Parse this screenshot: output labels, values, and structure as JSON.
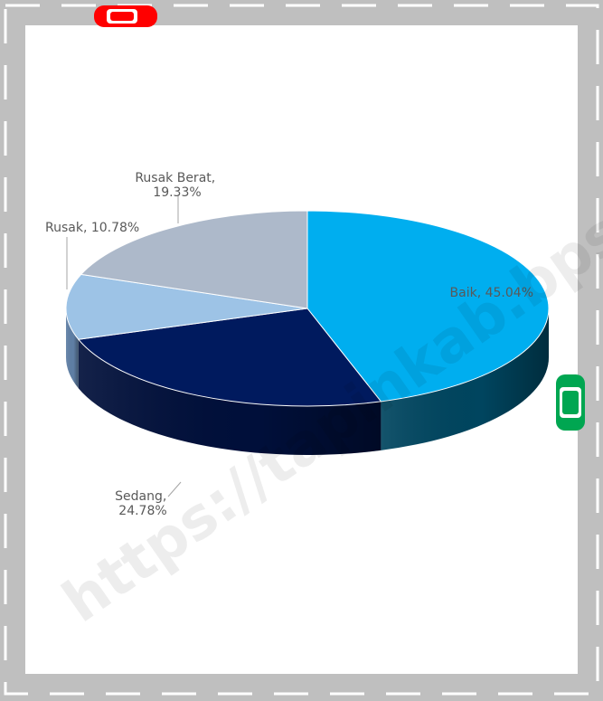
{
  "chart_data": {
    "type": "pie",
    "title": "",
    "slices": [
      {
        "name": "Baik",
        "value": 45.04,
        "label_line1": "Baik, 45.04%",
        "label_line2": ""
      },
      {
        "name": "Sedang",
        "value": 24.78,
        "label_line1": "Sedang,",
        "label_line2": "24.78%"
      },
      {
        "name": "Rusak",
        "value": 10.78,
        "label_line1": "Rusak, 10.78%",
        "label_line2": ""
      },
      {
        "name": "Rusak Berat",
        "value": 19.33,
        "label_line1": "Rusak Berat,",
        "label_line2": "19.33%"
      }
    ],
    "colors": [
      "#00AEEF",
      "#001A5E",
      "#9DC3E6",
      "#ADB9CA"
    ],
    "side_colors": [
      "#00455F",
      "#000F3A",
      "#5F7FA5",
      "#7F8A99"
    ],
    "start_angle_deg": -90,
    "direction": "clockwise",
    "style": "3d"
  },
  "watermark": {
    "text": "https://tapinkab.bps.go.id"
  },
  "decorations": {
    "road_color": "#BFBFBF",
    "lane_color": "#FFFFFF",
    "car_red": "#FF0000",
    "car_green": "#00A651"
  }
}
